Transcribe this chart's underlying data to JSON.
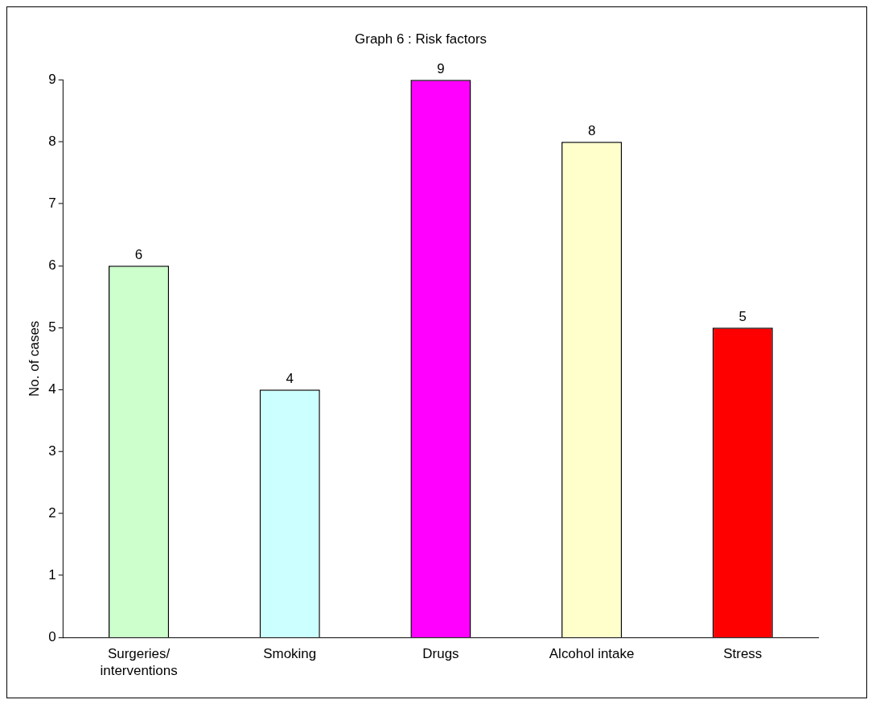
{
  "chart_data": {
    "type": "bar",
    "title": "Graph 6 : Risk factors",
    "ylabel": "No. of cases",
    "categories": [
      "Surgeries/ interventions",
      "Smoking",
      "Drugs",
      "Alcohol intake",
      "Stress"
    ],
    "values": [
      6,
      4,
      9,
      8,
      5
    ],
    "colors": [
      "#ccffcc",
      "#ccffff",
      "#ff00ff",
      "#ffffcc",
      "#ff0000"
    ],
    "ylim": [
      0,
      9
    ],
    "yticks": [
      0,
      1,
      2,
      3,
      4,
      5,
      6,
      7,
      8,
      9
    ],
    "grid": false,
    "data_labels": true
  }
}
